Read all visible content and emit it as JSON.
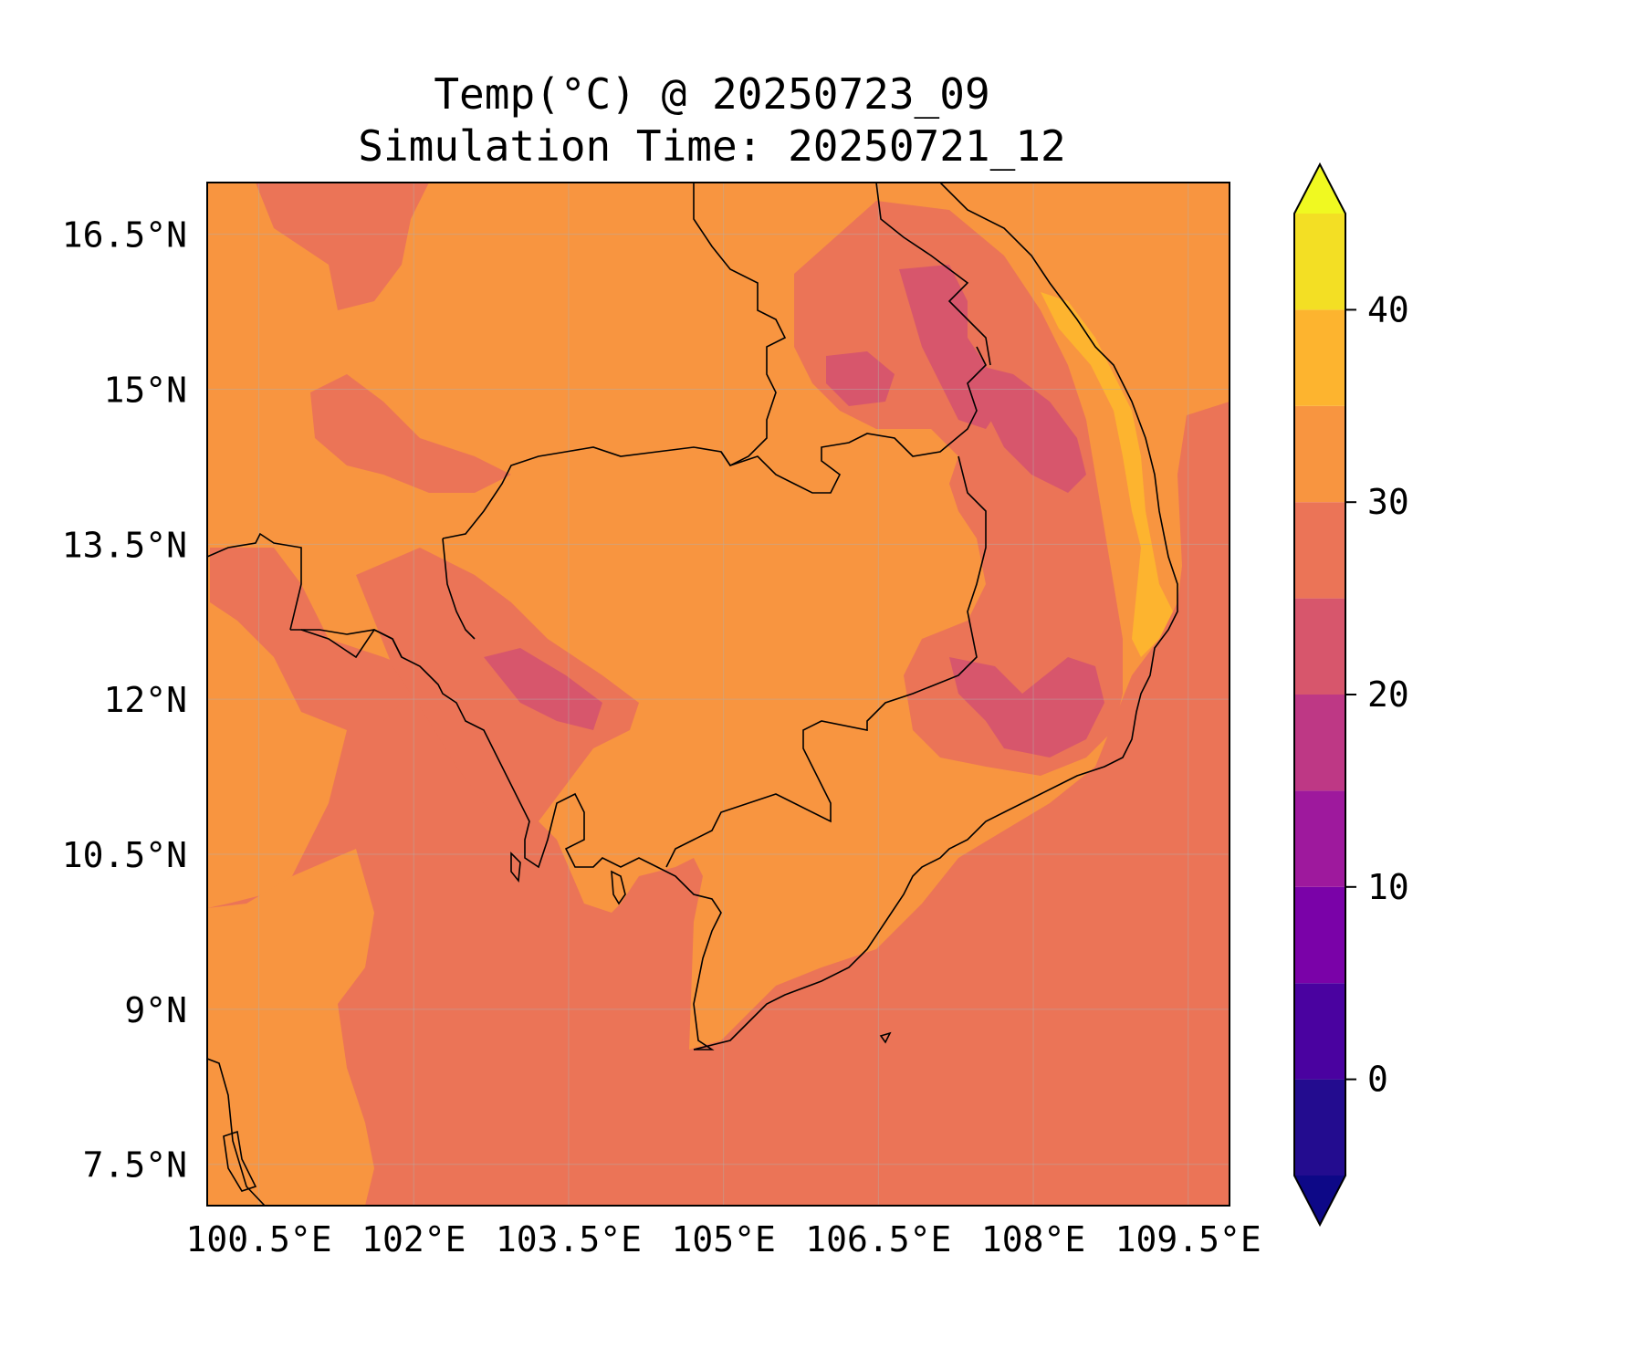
{
  "title": {
    "line1": "Temp(°C) @ 20250723_09",
    "line2": "Simulation Time: 20250721_12"
  },
  "map": {
    "extent": {
      "lon": [
        100.0,
        109.9
      ],
      "lat": [
        7.1,
        17.0
      ]
    },
    "gridlines": true,
    "lon_ticks": [
      {
        "value": 100.5,
        "label": "100.5°E"
      },
      {
        "value": 102.0,
        "label": "102°E"
      },
      {
        "value": 103.5,
        "label": "103.5°E"
      },
      {
        "value": 105.0,
        "label": "105°E"
      },
      {
        "value": 106.5,
        "label": "106.5°E"
      },
      {
        "value": 108.0,
        "label": "108°E"
      },
      {
        "value": 109.5,
        "label": "109.5°E"
      }
    ],
    "lat_ticks": [
      {
        "value": 16.5,
        "label": "16.5°N"
      },
      {
        "value": 15.0,
        "label": "15°N"
      },
      {
        "value": 13.5,
        "label": "13.5°N"
      },
      {
        "value": 12.0,
        "label": "12°N"
      },
      {
        "value": 10.5,
        "label": "10.5°N"
      },
      {
        "value": 9.0,
        "label": "9°N"
      },
      {
        "value": 7.5,
        "label": "7.5°N"
      }
    ]
  },
  "colorbar": {
    "range": [
      -5,
      45
    ],
    "extend": "both",
    "levels": [
      -5,
      0,
      5,
      10,
      15,
      20,
      25,
      30,
      35,
      40,
      45
    ],
    "colors": [
      "#230c8f",
      "#4a02a0",
      "#7a02a8",
      "#9e199d",
      "#be3885",
      "#d7566c",
      "#eb7457",
      "#f89540",
      "#fdb42f",
      "#f3df24"
    ],
    "under_color": "#0d0887",
    "over_color": "#f0f921",
    "ticks": [
      {
        "value": 0,
        "label": "0"
      },
      {
        "value": 10,
        "label": "10"
      },
      {
        "value": 20,
        "label": "20"
      },
      {
        "value": 30,
        "label": "30"
      },
      {
        "value": 40,
        "label": "40"
      }
    ]
  },
  "fields": {
    "band_25_30_color": "#eb7457",
    "band_30_35_color": "#f89540",
    "band_20_25_color": "#d7566c",
    "band_35_40_color": "#fdb42f",
    "coastline_color": "#000000"
  }
}
